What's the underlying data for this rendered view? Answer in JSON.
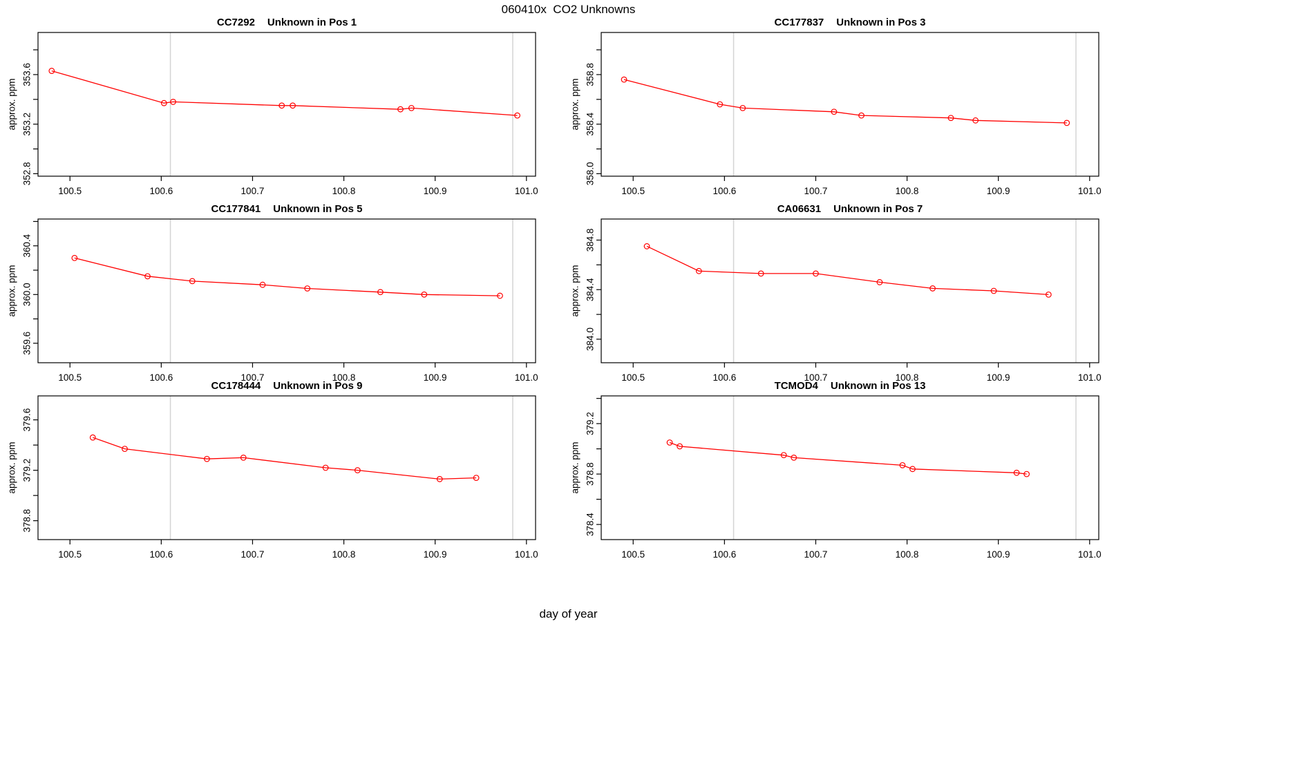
{
  "figure": {
    "title": "060410x  CO2 Unknowns",
    "xlabel": "day of year"
  },
  "chart_data": {
    "type": "line",
    "title": "060410x  CO2 Unknowns",
    "xlabel": "day of year",
    "ylabel": "approx. ppm",
    "legend": "none",
    "grid": "vertical-gridlines-only",
    "xlim": [
      100.465,
      101.01
    ],
    "x_ticks": [
      100.5,
      100.6,
      100.7,
      100.8,
      100.9,
      101.0
    ],
    "x_tick_labels": [
      "100.5",
      "100.6",
      "100.7",
      "100.8",
      "100.9",
      "101.0"
    ],
    "x_gridlines": [
      100.61,
      100.985
    ],
    "line_color": "#ff0000",
    "grid_color": "#d4d4d4",
    "axis_color": "#000000",
    "point_style": "open-circle",
    "panels": [
      {
        "id": "cc7292-pos1",
        "sample": "CC7292",
        "position_label": "Unknown in Pos 1",
        "ylim": [
          352.78,
          353.94
        ],
        "y_ticks": [
          352.8,
          353.0,
          353.2,
          353.4,
          353.6,
          353.8
        ],
        "y_labeled": [
          "352.8",
          "353.2",
          "353.6"
        ],
        "x": [
          100.48,
          100.603,
          100.613,
          100.732,
          100.744,
          100.862,
          100.874,
          100.99
        ],
        "y": [
          353.63,
          353.37,
          353.38,
          353.35,
          353.35,
          353.32,
          353.33,
          353.27
        ]
      },
      {
        "id": "cc177837-pos3",
        "sample": "CC177837",
        "position_label": "Unknown in Pos 3",
        "ylim": [
          357.98,
          359.14
        ],
        "y_ticks": [
          358.0,
          358.2,
          358.4,
          358.6,
          358.8,
          359.0
        ],
        "y_labeled": [
          "358.0",
          "358.4",
          "358.8"
        ],
        "x": [
          100.49,
          100.595,
          100.62,
          100.72,
          100.75,
          100.848,
          100.875,
          100.975
        ],
        "y": [
          358.76,
          358.56,
          358.53,
          358.5,
          358.47,
          358.45,
          358.43,
          358.41
        ]
      },
      {
        "id": "cc177841-pos5",
        "sample": "CC177841",
        "position_label": "Unknown in Pos 5",
        "ylim": [
          359.44,
          360.62
        ],
        "y_ticks": [
          359.6,
          359.8,
          360.0,
          360.2,
          360.4,
          360.6
        ],
        "y_labeled": [
          "359.6",
          "360.0",
          "360.4"
        ],
        "x": [
          100.505,
          100.585,
          100.634,
          100.711,
          100.76,
          100.84,
          100.888,
          100.971
        ],
        "y": [
          360.3,
          360.15,
          360.11,
          360.08,
          360.05,
          360.02,
          360.0,
          359.99
        ]
      },
      {
        "id": "ca06631-pos7",
        "sample": "CA06631",
        "position_label": "Unknown in Pos 7",
        "ylim": [
          383.81,
          384.97
        ],
        "y_ticks": [
          384.0,
          384.2,
          384.4,
          384.6,
          384.8
        ],
        "y_labeled": [
          "384.0",
          "384.4",
          "384.8"
        ],
        "x": [
          100.515,
          100.572,
          100.64,
          100.7,
          100.77,
          100.828,
          100.895,
          100.955
        ],
        "y": [
          384.75,
          384.55,
          384.53,
          384.53,
          384.46,
          384.41,
          384.39,
          384.36
        ]
      },
      {
        "id": "cc178444-pos9",
        "sample": "CC178444",
        "position_label": "Unknown in Pos 9",
        "ylim": [
          378.65,
          379.79
        ],
        "y_ticks": [
          378.8,
          379.0,
          379.2,
          379.4,
          379.6
        ],
        "y_labeled": [
          "378.8",
          "379.2",
          "379.6"
        ],
        "x": [
          100.525,
          100.56,
          100.65,
          100.69,
          100.78,
          100.815,
          100.905,
          100.945
        ],
        "y": [
          379.46,
          379.37,
          379.29,
          379.3,
          379.22,
          379.2,
          379.13,
          379.14
        ]
      },
      {
        "id": "tcmod4-pos13",
        "sample": "TCMOD4",
        "position_label": "Unknown in Pos 13",
        "ylim": [
          378.28,
          379.42
        ],
        "y_ticks": [
          378.4,
          378.6,
          378.8,
          379.0,
          379.2,
          379.4
        ],
        "y_labeled": [
          "378.4",
          "378.8",
          "379.2"
        ],
        "x": [
          100.54,
          100.551,
          100.665,
          100.676,
          100.795,
          100.806,
          100.92,
          100.931
        ],
        "y": [
          379.05,
          379.02,
          378.95,
          378.93,
          378.87,
          378.84,
          378.81,
          378.8
        ]
      }
    ]
  }
}
